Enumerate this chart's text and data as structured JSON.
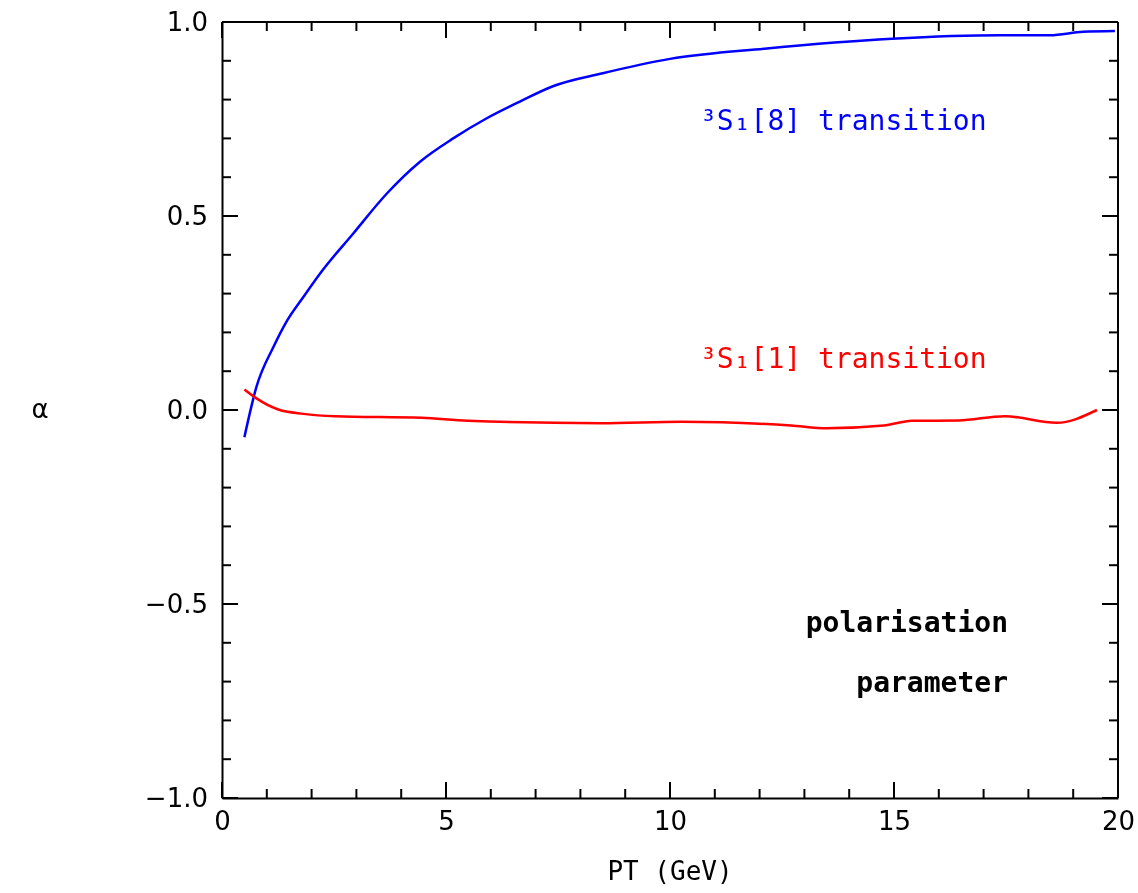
{
  "chart_data": {
    "type": "line",
    "xlabel": "PT (GeV)",
    "ylabel": "α",
    "xlim": [
      0,
      20
    ],
    "ylim": [
      -1,
      1
    ],
    "xticks": [
      0,
      {
        "value": 1,
        "label": null
      },
      {
        "value": 2,
        "label": null
      },
      {
        "value": 3,
        "label": null
      },
      {
        "value": 4,
        "label": null
      },
      5,
      {
        "value": 6,
        "label": null
      },
      {
        "value": 7,
        "label": null
      },
      {
        "value": 8,
        "label": null
      },
      {
        "value": 9,
        "label": null
      },
      10,
      {
        "value": 11,
        "label": null
      },
      {
        "value": 12,
        "label": null
      },
      {
        "value": 13,
        "label": null
      },
      {
        "value": 14,
        "label": null
      },
      15,
      {
        "value": 16,
        "label": null
      },
      {
        "value": 17,
        "label": null
      },
      {
        "value": 18,
        "label": null
      },
      {
        "value": 19,
        "label": null
      },
      20
    ],
    "yticks": [
      {
        "value": -1,
        "label": "−1.0"
      },
      {
        "value": -0.9,
        "label": null
      },
      {
        "value": -0.8,
        "label": null
      },
      {
        "value": -0.7,
        "label": null
      },
      {
        "value": -0.6,
        "label": null
      },
      {
        "value": -0.5,
        "label": "−0.5"
      },
      {
        "value": -0.4,
        "label": null
      },
      {
        "value": -0.3,
        "label": null
      },
      {
        "value": -0.2,
        "label": null
      },
      {
        "value": -0.1,
        "label": null
      },
      {
        "value": 0,
        "label": "0.0"
      },
      {
        "value": 0.1,
        "label": null
      },
      {
        "value": 0.2,
        "label": null
      },
      {
        "value": 0.3,
        "label": null
      },
      {
        "value": 0.4,
        "label": null
      },
      {
        "value": 0.5,
        "label": "0.5"
      },
      {
        "value": 0.6,
        "label": null
      },
      {
        "value": 0.7,
        "label": null
      },
      {
        "value": 0.8,
        "label": null
      },
      {
        "value": 0.9,
        "label": null
      },
      {
        "value": 1,
        "label": "1.0"
      }
    ],
    "grid": false,
    "series": [
      {
        "name": "³S₁[8] transition",
        "color": "#0000ff",
        "x": [
          0.5,
          0.77,
          1.15,
          1.44,
          1.82,
          2.19,
          2.93,
          3.68,
          4.42,
          5.16,
          5.91,
          6.65,
          7.4,
          8.5,
          10.0,
          12.16,
          14.95,
          17.37,
          18.48,
          19.22,
          19.93
        ],
        "values": [
          -0.07,
          0.06,
          0.163,
          0.228,
          0.292,
          0.352,
          0.455,
          0.558,
          0.64,
          0.7,
          0.752,
          0.795,
          0.835,
          0.868,
          0.905,
          0.932,
          0.957,
          0.966,
          0.966,
          0.975,
          0.977
        ]
      },
      {
        "name": "³S₁[1] transition",
        "color": "#ff0000",
        "x": [
          0.5,
          0.77,
          1.24,
          1.82,
          2.53,
          4.46,
          5.49,
          8.46,
          10.26,
          12.7,
          13.5,
          14.77,
          15.4,
          16.44,
          17.47,
          18.63,
          19.53
        ],
        "values": [
          0.053,
          0.03,
          0.002,
          -0.01,
          -0.016,
          -0.02,
          -0.028,
          -0.034,
          -0.03,
          -0.04,
          -0.047,
          -0.04,
          -0.028,
          -0.027,
          -0.016,
          -0.033,
          0
        ]
      }
    ],
    "annotations": [
      "polarisation parameter"
    ]
  }
}
